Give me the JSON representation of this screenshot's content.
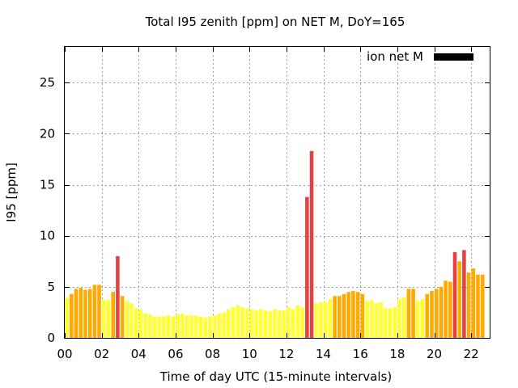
{
  "chart_data": {
    "type": "bar",
    "title": "Total I95 zenith [ppm] on NET M, DoY=165",
    "xlabel": "Time of day UTC (15-minute intervals)",
    "ylabel": "I95 [ppm]",
    "xlim": [
      0,
      23
    ],
    "ylim": [
      0,
      28.5
    ],
    "x_ticks": [
      "00",
      "02",
      "04",
      "06",
      "08",
      "10",
      "12",
      "14",
      "16",
      "18",
      "20",
      "22"
    ],
    "y_ticks": [
      "0",
      "5",
      "10",
      "15",
      "20",
      "25"
    ],
    "grid": true,
    "legend": {
      "label": "ion net M",
      "color": "#000000",
      "placement": "top-right"
    },
    "bar_colors": {
      "low": "#ffff33",
      "medium": "#ffaa00",
      "medium_high": "#f39c12",
      "high": "#e84040"
    },
    "series": [
      {
        "values": [
          3.9,
          4.3,
          4.8,
          4.9,
          4.7,
          4.8,
          5.2,
          5.2,
          3.7,
          3.7,
          4.5,
          8.0,
          4.1,
          3.6,
          3.4,
          2.9,
          2.8,
          2.4,
          2.3,
          2.1,
          2.1,
          2.1,
          2.2,
          2.1,
          2.3,
          2.4,
          2.2,
          2.2,
          2.2,
          2.1,
          2.0,
          2.1,
          2.2,
          2.4,
          2.5,
          2.8,
          3.0,
          3.2,
          3.0,
          2.9,
          2.8,
          2.7,
          2.8,
          2.7,
          2.6,
          2.8,
          2.7,
          2.7,
          3.0,
          2.8,
          3.2,
          3.0,
          13.8,
          18.3,
          3.4,
          3.5,
          3.5,
          3.8,
          4.1,
          4.1,
          4.3,
          4.5,
          4.6,
          4.5,
          4.3,
          3.6,
          3.7,
          3.4,
          3.5,
          2.9,
          2.9,
          3.0,
          3.8,
          4.0,
          4.8,
          4.8,
          3.6,
          3.8,
          4.3,
          4.6,
          4.8,
          5.0,
          5.6,
          5.5,
          8.4,
          7.5,
          8.6,
          6.4,
          6.8,
          6.2,
          6.2
        ],
        "levels": [
          "low",
          "medium",
          "medium",
          "medium",
          "medium",
          "medium",
          "medium",
          "medium",
          "low",
          "low",
          "medium",
          "high",
          "medium",
          "low",
          "low",
          "low",
          "low",
          "low",
          "low",
          "low",
          "low",
          "low",
          "low",
          "low",
          "low",
          "low",
          "low",
          "low",
          "low",
          "low",
          "low",
          "low",
          "low",
          "low",
          "low",
          "low",
          "low",
          "low",
          "low",
          "low",
          "low",
          "low",
          "low",
          "low",
          "low",
          "low",
          "low",
          "low",
          "low",
          "low",
          "low",
          "low",
          "high",
          "high",
          "low",
          "low",
          "low",
          "low",
          "medium",
          "medium",
          "medium",
          "medium",
          "medium",
          "medium",
          "medium",
          "low",
          "low",
          "low",
          "low",
          "low",
          "low",
          "low",
          "low",
          "low",
          "medium",
          "medium",
          "low",
          "low",
          "medium",
          "medium",
          "medium",
          "medium",
          "medium",
          "medium",
          "high",
          "medium",
          "high",
          "medium",
          "medium",
          "medium",
          "medium"
        ]
      }
    ]
  }
}
